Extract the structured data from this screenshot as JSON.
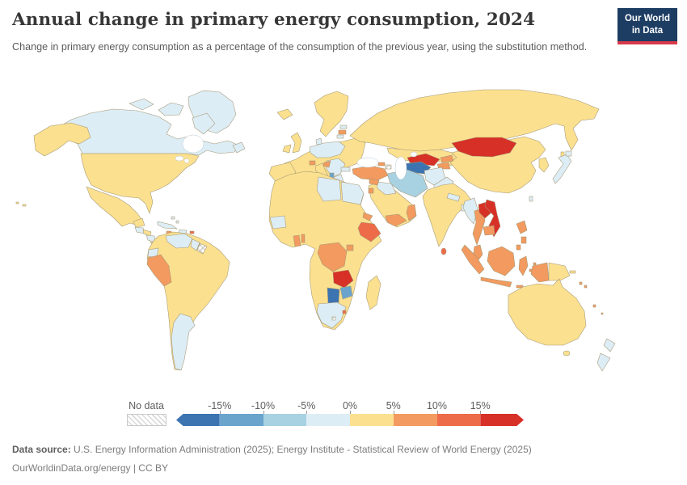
{
  "header": {
    "title": "Annual change in primary energy consumption, 2024",
    "subtitle": "Change in primary energy consumption as a percentage of the consumption of the previous year, using the substitution method.",
    "logo_line1": "Our World",
    "logo_line2": "in Data",
    "logo_bg": "#1d3d63",
    "logo_accent": "#d93a4a"
  },
  "legend": {
    "no_data_label": "No data",
    "tick_labels": [
      "-15%",
      "-10%",
      "-5%",
      "0%",
      "5%",
      "10%",
      "15%"
    ],
    "colors": [
      "#3c74b1",
      "#6aa4cd",
      "#a8d1e2",
      "#ddedf5",
      "#fbe08f",
      "#f29a5f",
      "#ee6b49",
      "#d73027"
    ]
  },
  "footer": {
    "source_label": "Data source:",
    "source_text": " U.S. Energy Information Administration (2025); Energy Institute - Statistical Review of World Energy (2025)",
    "url_line": "OurWorldinData.org/energy | CC BY"
  },
  "chart_data": {
    "type": "choropleth-map",
    "title": "Annual change in primary energy consumption, 2024",
    "unit": "% change vs previous year",
    "bins": {
      "b1": {
        "range": "less than -15%",
        "color": "#3c74b1"
      },
      "b2": {
        "range": "-15% to -10%",
        "color": "#6aa4cd"
      },
      "b3": {
        "range": "-10% to -5%",
        "color": "#a8d1e2"
      },
      "b4": {
        "range": "-5% to 0%",
        "color": "#ddedf5"
      },
      "b5": {
        "range": "0% to 5%",
        "color": "#fbe08f"
      },
      "b6": {
        "range": "5% to 10%",
        "color": "#f29a5f"
      },
      "b7": {
        "range": "10% to 15%",
        "color": "#ee6b49"
      },
      "b8": {
        "range": "more than 15%",
        "color": "#d73027"
      },
      "nd": {
        "range": "No data",
        "color": "hatched"
      }
    },
    "regions": {
      "greenland": "b4",
      "canada": "b4",
      "united-states": "b5",
      "mexico": "b5",
      "guatemala": "b4",
      "honduras": "b5",
      "nicaragua": "b4",
      "panama-costa-rica": "b5",
      "cuba": "b4",
      "hispaniola": "b4",
      "jamaica": "b6",
      "puerto-rico": "b7",
      "bahamas": "b4",
      "brazil-region": "b5",
      "venezuela": "b4",
      "guyana": "b4",
      "suriname": "nd",
      "ecuador": "b4",
      "peru": "b6",
      "argentina-region": "b4",
      "iceland": "b5",
      "united-kingdom": "b5",
      "ireland": "b5",
      "scandinavia": "b5",
      "denmark": "b4",
      "western-europe": "b5",
      "germany-poland": "b4",
      "balkans": "b4",
      "greece": "b4",
      "albania": "b2",
      "croatia": "b6",
      "switzerland": "b6",
      "latvia": "b6",
      "estonia": "b4",
      "lithuania": "b4",
      "bulgaria": "b4",
      "turkey": "b6",
      "georgia": "b6",
      "azerbaijan": "nd",
      "russia": "b5",
      "kazakhstan": "b5",
      "uzbekistan": "b8",
      "turkmenistan": "b1",
      "kyrgyzstan": "b6",
      "tajikistan": "b6",
      "iran": "b3",
      "afghanistan": "b4",
      "pakistan": "b4",
      "india": "b5",
      "nepal": "b4",
      "bangladesh": "b4",
      "sri-lanka": "b7",
      "saudi-arabia": "b5",
      "iraq": "b4",
      "syria": "b6",
      "jordan": "b6",
      "yemen": "b6",
      "oman": "b6",
      "africa-mainland": "b5",
      "mauritania": "b4",
      "libya": "b4",
      "egypt": "b4",
      "ghana": "b6",
      "benin": "b6",
      "eritrea": "b6",
      "ethiopia": "b7",
      "dr-congo": "b6",
      "uganda": "b6",
      "zambia": "b8",
      "zimbabwe": "b2",
      "botswana": "b1",
      "south-africa": "b4",
      "eswatini": "b7",
      "lesotho": "nd",
      "madagascar": "b5",
      "china": "b5",
      "mongolia": "b8",
      "korea": "b5",
      "japan": "b4",
      "taiwan": "b4",
      "myanmar": "b4",
      "thailand": "b6",
      "laos": "b8",
      "vietnam": "b8",
      "cambodia": "b6",
      "malaysia": "b6",
      "indonesia": "b6",
      "philippines": "b6",
      "papua-new-guinea": "b5",
      "pacific-islands": "b6",
      "australia": "b5",
      "new-zealand": "b4",
      "hawaii": "b5"
    }
  }
}
